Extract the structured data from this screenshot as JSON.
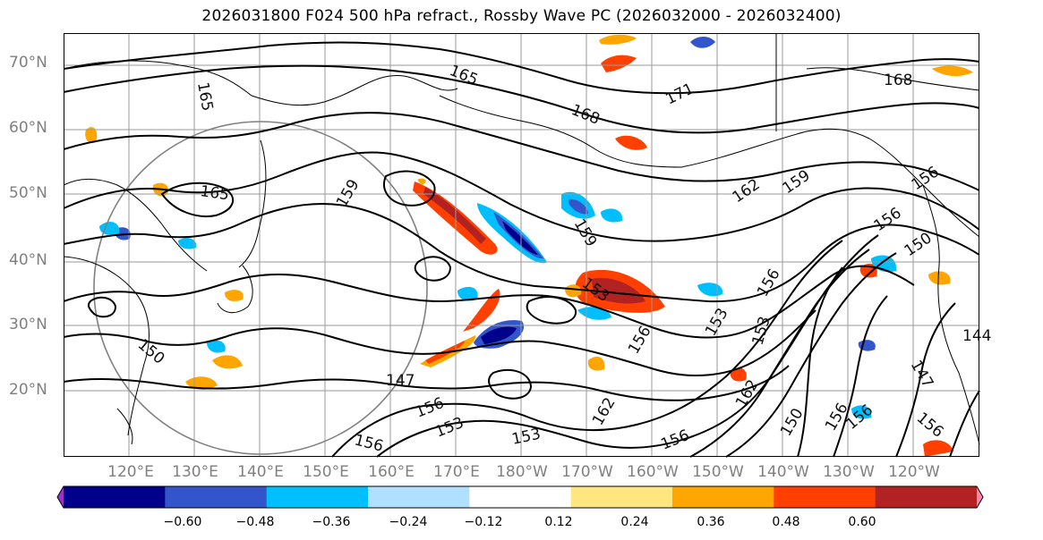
{
  "title": "2026031800 F024 500 hPa refract., Rossby Wave PC (2026032000 - 2026032400)",
  "axes": {
    "lat_labels": [
      "70°N",
      "60°N",
      "50°N",
      "40°N",
      "30°N",
      "20°N"
    ],
    "lon_labels": [
      "120°E",
      "130°E",
      "140°E",
      "150°E",
      "160°E",
      "170°E",
      "180°W",
      "170°W",
      "160°W",
      "150°W",
      "140°W",
      "130°W",
      "120°W"
    ]
  },
  "contour_labels": [
    "165",
    "165",
    "168",
    "171",
    "168",
    "165",
    "159",
    "159",
    "162",
    "159",
    "156",
    "156",
    "150",
    "153",
    "156",
    "153",
    "153",
    "156",
    "162",
    "150",
    "156",
    "156",
    "150",
    "147",
    "156",
    "153",
    "153",
    "156",
    "156",
    "147",
    "144",
    "162",
    "156"
  ],
  "colorbar": {
    "tick_labels": [
      "−0.60",
      "−0.48",
      "−0.36",
      "−0.24",
      "−0.12",
      "0.12",
      "0.24",
      "0.36",
      "0.48",
      "0.60"
    ],
    "colors": [
      "#9933cc",
      "#00008b",
      "#3355cc",
      "#00bfff",
      "#b0e0ff",
      "#ffffff",
      "#ffe680",
      "#ffa500",
      "#ff4000",
      "#b22222",
      "#ff88b0"
    ]
  }
}
